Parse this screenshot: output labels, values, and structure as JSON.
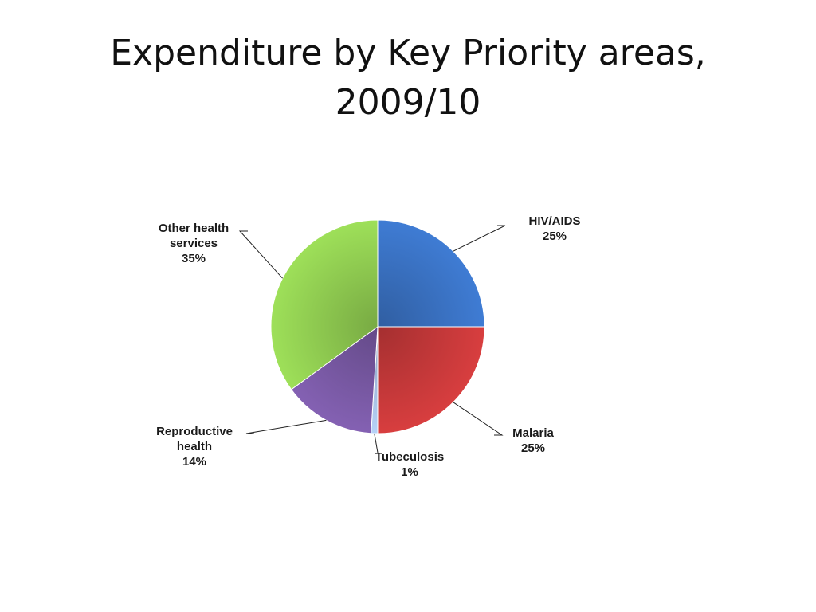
{
  "slide": {
    "title_line1": "Expenditure by Key Priority areas,",
    "title_line2": "2009/10"
  },
  "chart_data": {
    "type": "pie",
    "title": "Expenditure by Key Priority areas, 2009/10",
    "slices": [
      {
        "label_lines": [
          "HIV/AIDS"
        ],
        "value": 25,
        "value_text": "25%",
        "color": "#3a73c4"
      },
      {
        "label_lines": [
          "Malaria"
        ],
        "value": 25,
        "value_text": "25%",
        "color": "#c8393a"
      },
      {
        "label_lines": [
          "Tubeculosis"
        ],
        "value": 1,
        "value_text": "1%",
        "color": "#a9c2e6"
      },
      {
        "label_lines": [
          "Reproductive",
          "health"
        ],
        "value": 14,
        "value_text": "14%",
        "color": "#7a5aa6"
      },
      {
        "label_lines": [
          "Other health",
          "services"
        ],
        "value": 35,
        "value_text": "35%",
        "color": "#92cf52"
      }
    ],
    "start_angle_deg": 0,
    "direction": "clockwise",
    "legend": "none",
    "data_labels": "outside with leader lines"
  }
}
